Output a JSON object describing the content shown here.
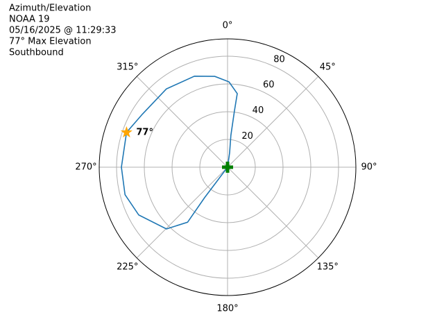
{
  "chart_data": {
    "type": "polar",
    "title_lines": [
      "Azimuth/Elevation",
      "NOAA 19",
      "05/16/2025 @ 11:29:33",
      "77° Max Elevation",
      "Southbound"
    ],
    "theta_direction": "clockwise",
    "theta_zero": "N",
    "rlim": [
      0,
      92.5
    ],
    "rticks": [
      20,
      40,
      60,
      80
    ],
    "thetaticks": [
      {
        "value": 0,
        "label": "0°"
      },
      {
        "value": 45,
        "label": "45°"
      },
      {
        "value": 90,
        "label": "90°"
      },
      {
        "value": 135,
        "label": "135°"
      },
      {
        "value": 180,
        "label": "180°"
      },
      {
        "value": 225,
        "label": "225°"
      },
      {
        "value": 270,
        "label": "270°"
      },
      {
        "value": 315,
        "label": "315°"
      }
    ],
    "grid": true,
    "series": [
      {
        "color": "#1f77b4",
        "theta": [
          0,
          8,
          6,
          7,
          7.5,
          1,
          352,
          340,
          322,
          302,
          289,
          270,
          255,
          241.7,
          224.7,
          216,
          217,
          217,
          0
        ],
        "r": [
          0,
          10.6,
          23.1,
          40.8,
          53.5,
          61.5,
          66.1,
          69.8,
          71.6,
          72.3,
          77,
          76.5,
          76.5,
          72.7,
          62.6,
          49,
          27.5,
          10.7,
          0
        ]
      }
    ],
    "max_point": {
      "theta": 289,
      "r": 77,
      "label": "77°",
      "color": "orange"
    },
    "start_point": {
      "theta": 0,
      "r": 0,
      "color": "green"
    }
  }
}
